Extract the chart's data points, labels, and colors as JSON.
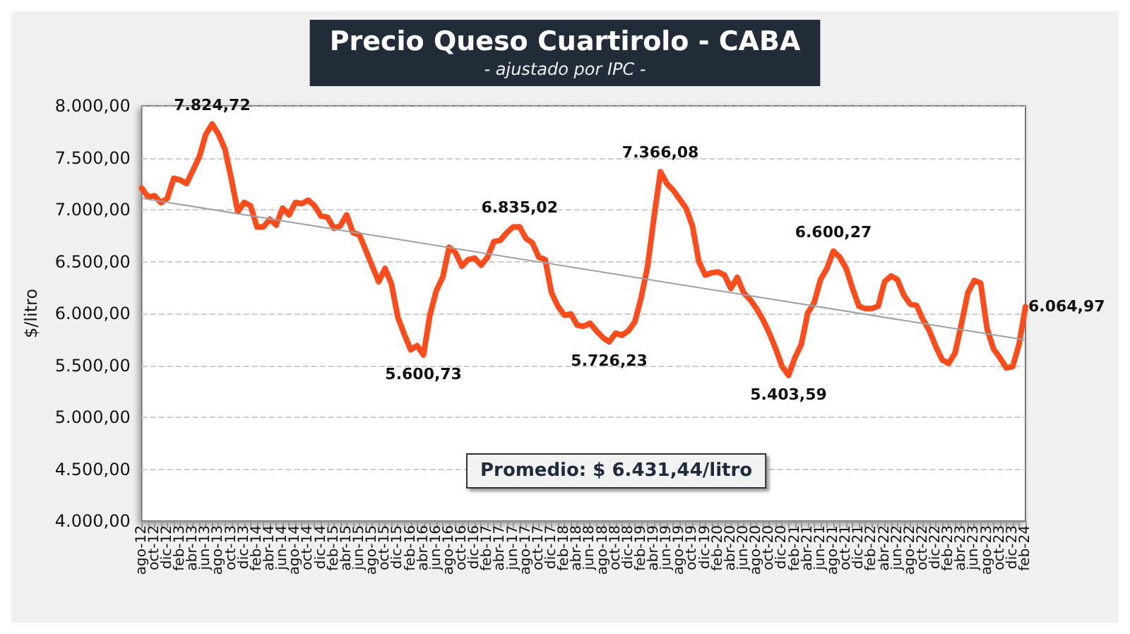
{
  "chart_data": {
    "type": "line",
    "title": "Precio Queso Cuartirolo - CABA",
    "subtitle": "- ajustado por IPC -",
    "ylabel": "$/litro",
    "categories": [
      "ago-12",
      null,
      "oct-12",
      null,
      "dic-12",
      null,
      "feb-13",
      null,
      "abr-13",
      null,
      "jun-13",
      null,
      "ago-13",
      null,
      "oct-13",
      null,
      "dic-13",
      null,
      "feb-14",
      null,
      "abr-14",
      null,
      "jun-14",
      null,
      "ago-14",
      null,
      "oct-14",
      null,
      "dic-14",
      null,
      "feb-15",
      null,
      "abr-15",
      null,
      "jun-15",
      null,
      "ago-15",
      null,
      "oct-15",
      null,
      "dic-15",
      null,
      "feb-16",
      null,
      "abr-16",
      null,
      "jun-16",
      null,
      "ago-16",
      null,
      "oct-16",
      null,
      "dic-16",
      null,
      "feb-17",
      null,
      "abr-17",
      null,
      "jun-17",
      null,
      "ago-17",
      null,
      "oct-17",
      null,
      "dic-17",
      null,
      "feb-18",
      null,
      "abr-18",
      null,
      "jun-18",
      null,
      "ago-18",
      null,
      "oct-18",
      null,
      "dic-18",
      null,
      "feb-19",
      null,
      "abr-19",
      null,
      "jun-19",
      null,
      "ago-19",
      null,
      "oct-19",
      null,
      "dic-19",
      null,
      "feb-20",
      null,
      "abr-20",
      null,
      "jun-20",
      null,
      "ago-20",
      null,
      "oct-20",
      null,
      "dic-20",
      null,
      "feb-21",
      null,
      "abr-21",
      null,
      "jun-21",
      null,
      "ago-21",
      null,
      "oct-21",
      null,
      "dic-21",
      null,
      "feb-22",
      null,
      "abr-22",
      null,
      "jun-22",
      null,
      "ago-22",
      null,
      "oct-22",
      null,
      "dic-22",
      null,
      "feb-23",
      null,
      "abr-23",
      null,
      "jun-23",
      null,
      "ago-23",
      null,
      "oct-23",
      null,
      "dic-23",
      null,
      "feb-24"
    ],
    "series": [
      {
        "color": "#fc4c1c",
        "values": [
          7208,
          7122,
          7135,
          7067,
          7110,
          7303,
          7286,
          7252,
          7380,
          7510,
          7725,
          7824.72,
          7725,
          7583,
          7295,
          6980,
          7070,
          7037,
          6834,
          6834,
          6908,
          6852,
          7015,
          6950,
          7070,
          7058,
          7092,
          7037,
          6938,
          6929,
          6822,
          6843,
          6950,
          6778,
          6757,
          6607,
          6456,
          6306,
          6434,
          6284,
          5962,
          5800,
          5650,
          5690,
          5600.73,
          5983,
          6220,
          6348,
          6637,
          6585,
          6456,
          6520,
          6533,
          6465,
          6542,
          6693,
          6705,
          6778,
          6834,
          6835.02,
          6723,
          6680,
          6542,
          6520,
          6198,
          6069,
          5983,
          5996,
          5888,
          5876,
          5906,
          5833,
          5768,
          5726.23,
          5811,
          5790,
          5833,
          5919,
          6155,
          6456,
          6929,
          7366.08,
          7252,
          7187,
          7101,
          7015,
          6843,
          6499,
          6370,
          6392,
          6400,
          6370,
          6241,
          6348,
          6198,
          6134,
          6047,
          5940,
          5811,
          5660,
          5488,
          5403.59,
          5574,
          5703,
          6004,
          6103,
          6327,
          6434,
          6600.27,
          6542,
          6434,
          6241,
          6069,
          6047,
          6047,
          6069,
          6306,
          6361,
          6327,
          6177,
          6090,
          6077,
          5940,
          5833,
          5682,
          5553,
          5519,
          5618,
          5897,
          6198,
          6318,
          6293,
          5854,
          5660,
          5574,
          5475,
          5488,
          5703,
          6064.97
        ],
        "value_labels": [
          null,
          null,
          null,
          null,
          null,
          null,
          null,
          null,
          null,
          null,
          null,
          "7.824,72",
          null,
          null,
          null,
          null,
          null,
          null,
          null,
          null,
          null,
          null,
          null,
          null,
          null,
          null,
          null,
          null,
          null,
          null,
          null,
          null,
          null,
          null,
          null,
          null,
          null,
          null,
          null,
          null,
          null,
          null,
          null,
          null,
          "5.600,73",
          null,
          null,
          null,
          null,
          null,
          null,
          null,
          null,
          null,
          null,
          null,
          null,
          null,
          null,
          "6.835,02",
          null,
          null,
          null,
          null,
          null,
          null,
          null,
          null,
          null,
          null,
          null,
          null,
          null,
          "5.726,23",
          null,
          null,
          null,
          null,
          null,
          null,
          null,
          "7.366,08",
          null,
          null,
          null,
          null,
          null,
          null,
          null,
          null,
          null,
          null,
          null,
          null,
          null,
          null,
          null,
          null,
          null,
          null,
          null,
          "5.403,59",
          null,
          null,
          null,
          null,
          null,
          null,
          "6.600,27",
          null,
          null,
          null,
          null,
          null,
          null,
          null,
          null,
          null,
          null,
          null,
          null,
          null,
          null,
          null,
          null,
          null,
          null,
          null,
          null,
          null,
          null,
          null,
          null,
          null,
          null,
          null,
          null,
          null,
          "6.064,97"
        ]
      },
      {
        "type": "line",
        "color": "#a0a0a0",
        "x": [
          "ago-12",
          "feb-24"
        ],
        "values": [
          7110,
          5745
        ]
      }
    ],
    "ylim": [
      4000,
      8000
    ],
    "yticks": [
      {
        "value": 4000,
        "label": "4.000,00"
      },
      {
        "value": 4500,
        "label": "4.500,00"
      },
      {
        "value": 5000,
        "label": "5.000,00"
      },
      {
        "value": 5500,
        "label": "5.500,00"
      },
      {
        "value": 6000,
        "label": "6.000,00"
      },
      {
        "value": 6500,
        "label": "6.500,00"
      },
      {
        "value": 7000,
        "label": "7.000,00"
      },
      {
        "value": 7500,
        "label": "7.500,00"
      },
      {
        "value": 8000,
        "label": "8.000,00"
      }
    ],
    "grid": "y",
    "marker": "none",
    "line_style": "solid",
    "annotations": [
      "Promedio: $ 6.431,44/litro"
    ]
  }
}
